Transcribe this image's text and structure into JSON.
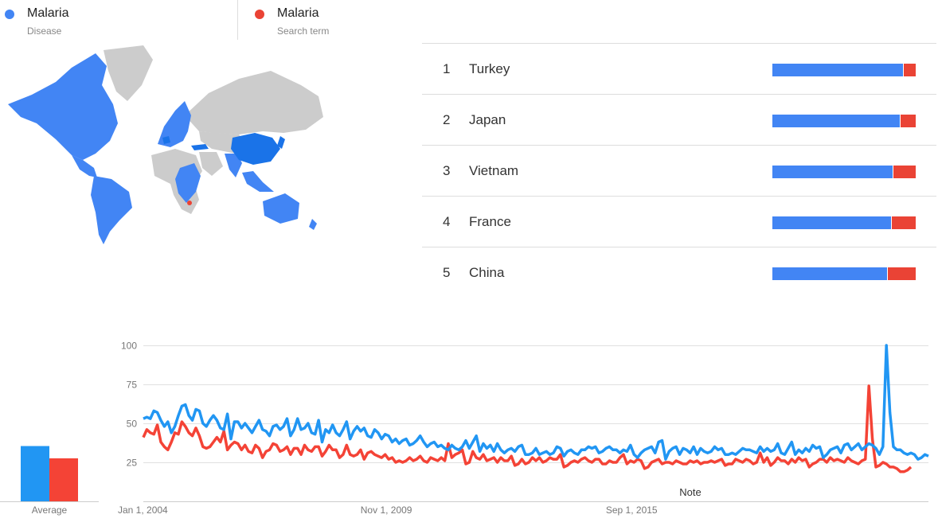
{
  "legend": [
    {
      "name": "Malaria",
      "sub": "Disease",
      "color": "#4285f4"
    },
    {
      "name": "Malaria",
      "sub": "Search term",
      "color": "#ea4335"
    }
  ],
  "map": {
    "land_color": "#cccccc",
    "highlight_color": "#4285f4",
    "dark_highlight_color": "#1a73e8",
    "red_color": "#ea4335"
  },
  "ranking": [
    {
      "rank": "1",
      "name": "Turkey",
      "blue": 91,
      "red": 9
    },
    {
      "rank": "2",
      "name": "Japan",
      "blue": 89,
      "red": 11
    },
    {
      "rank": "3",
      "name": "Vietnam",
      "blue": 84,
      "red": 16
    },
    {
      "rank": "4",
      "name": "France",
      "blue": 83,
      "red": 17
    },
    {
      "rank": "5",
      "name": "China",
      "blue": 80,
      "red": 20
    }
  ],
  "average": {
    "label": "Average",
    "values": [
      36,
      28
    ],
    "colors": [
      "#2196f3",
      "#f44336"
    ]
  },
  "chart_data": {
    "type": "line",
    "x_tick_labels": [
      "Jan 1, 2004",
      "Nov 1, 2009",
      "Sep 1, 2015"
    ],
    "y_ticks": [
      25,
      50,
      75,
      100
    ],
    "ylim": [
      0,
      100
    ],
    "grid": true,
    "annotation": "Note",
    "series": [
      {
        "name": "Malaria",
        "color": "#2196f3",
        "values": [
          53,
          54,
          53,
          58,
          57,
          52,
          48,
          51,
          44,
          48,
          55,
          61,
          62,
          55,
          52,
          59,
          58,
          50,
          48,
          52,
          55,
          52,
          47,
          46,
          56,
          40,
          51,
          51,
          47,
          50,
          47,
          44,
          48,
          52,
          46,
          45,
          42,
          48,
          49,
          46,
          48,
          53,
          42,
          46,
          53,
          46,
          47,
          50,
          44,
          43,
          52,
          38,
          46,
          44,
          49,
          44,
          42,
          46,
          51,
          40,
          45,
          48,
          45,
          47,
          42,
          41,
          46,
          44,
          40,
          43,
          42,
          38,
          40,
          37,
          39,
          40,
          36,
          37,
          39,
          42,
          38,
          35,
          37,
          38,
          35,
          36,
          34,
          33,
          36,
          34,
          33,
          35,
          39,
          34,
          38,
          42,
          32,
          37,
          34,
          36,
          32,
          37,
          33,
          31,
          33,
          34,
          32,
          35,
          36,
          30,
          30,
          31,
          34,
          30,
          31,
          32,
          30,
          31,
          35,
          34,
          29,
          32,
          33,
          31,
          30,
          33,
          33,
          35,
          34,
          35,
          31,
          32,
          34,
          35,
          33,
          33,
          31,
          33,
          32,
          36,
          30,
          28,
          31,
          33,
          34,
          35,
          31,
          38,
          39,
          27,
          32,
          34,
          35,
          30,
          34,
          33,
          31,
          35,
          30,
          34,
          32,
          31,
          32,
          35,
          33,
          34,
          30,
          30,
          31,
          30,
          32,
          34,
          33,
          33,
          32,
          31,
          35,
          32,
          34,
          32,
          33,
          37,
          31,
          30,
          34,
          38,
          30,
          33,
          31,
          34,
          32,
          36,
          34,
          35,
          28,
          30,
          33,
          34,
          35,
          31,
          36,
          37,
          33,
          35,
          37,
          33,
          35,
          37,
          36,
          34,
          30,
          35,
          100,
          57,
          35,
          33,
          33,
          31,
          30,
          31,
          30,
          27,
          28,
          30,
          29
        ]
      },
      {
        "name": "Malaria",
        "color": "#f44336",
        "values": [
          41,
          46,
          44,
          43,
          49,
          38,
          35,
          33,
          38,
          44,
          43,
          51,
          48,
          44,
          42,
          47,
          42,
          35,
          34,
          35,
          38,
          41,
          38,
          45,
          33,
          36,
          38,
          37,
          33,
          36,
          32,
          31,
          36,
          34,
          28,
          32,
          33,
          37,
          36,
          32,
          33,
          35,
          30,
          34,
          34,
          30,
          36,
          33,
          32,
          35,
          35,
          29,
          32,
          36,
          33,
          33,
          28,
          30,
          36,
          30,
          29,
          30,
          33,
          27,
          31,
          32,
          30,
          29,
          28,
          30,
          27,
          28,
          25,
          26,
          25,
          26,
          28,
          26,
          27,
          29,
          26,
          25,
          28,
          27,
          26,
          28,
          26,
          37,
          28,
          30,
          31,
          33,
          24,
          25,
          32,
          28,
          27,
          30,
          26,
          27,
          28,
          25,
          28,
          26,
          26,
          29,
          23,
          24,
          27,
          24,
          25,
          28,
          26,
          28,
          25,
          26,
          28,
          27,
          27,
          30,
          22,
          23,
          25,
          26,
          25,
          27,
          28,
          26,
          25,
          27,
          27,
          24,
          24,
          26,
          25,
          25,
          28,
          30,
          24,
          26,
          25,
          27,
          26,
          21,
          22,
          25,
          26,
          27,
          24,
          25,
          25,
          24,
          26,
          25,
          24,
          24,
          26,
          25,
          26,
          24,
          25,
          25,
          26,
          25,
          26,
          27,
          23,
          24,
          24,
          27,
          26,
          25,
          27,
          26,
          24,
          25,
          31,
          25,
          28,
          23,
          25,
          28,
          26,
          26,
          24,
          27,
          25,
          28,
          26,
          27,
          22,
          24,
          25,
          27,
          27,
          25,
          28,
          26,
          27,
          26,
          25,
          28,
          26,
          25,
          24,
          26,
          27,
          74,
          40,
          22,
          23,
          25,
          24,
          22,
          22,
          21,
          19,
          19,
          20,
          22
        ]
      }
    ]
  }
}
